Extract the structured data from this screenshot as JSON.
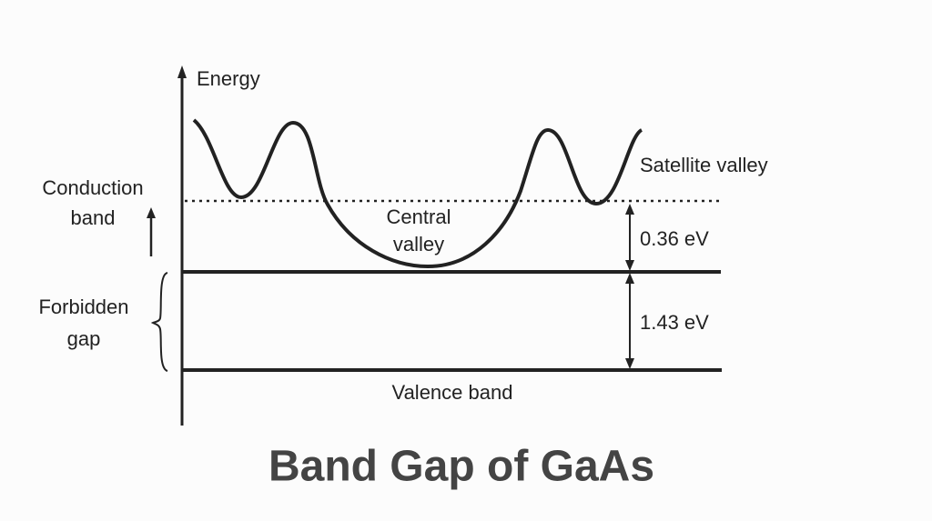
{
  "title": "Band Gap of GaAs",
  "diagram": {
    "axis_label": "Energy",
    "conduction_band": [
      "Conduction",
      "band"
    ],
    "forbidden_gap": [
      "Forbidden",
      "gap"
    ],
    "central_valley": [
      "Central",
      "valley"
    ],
    "satellite_valley": "Satellite valley",
    "upper_gap": "0.36 eV",
    "lower_gap": "1.43 eV",
    "valence_band": "Valence band"
  }
}
